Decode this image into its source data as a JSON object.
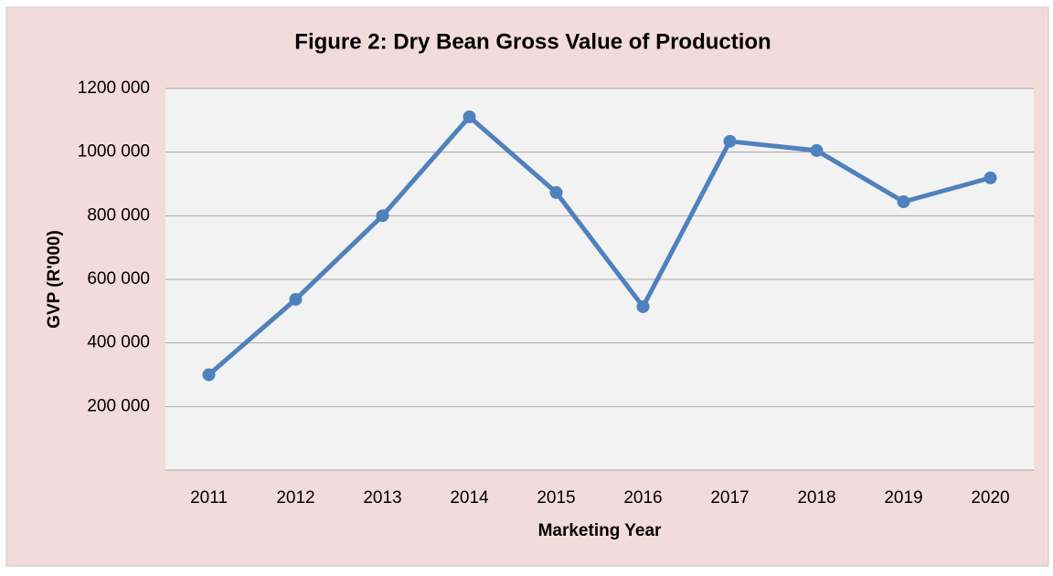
{
  "chart_data": {
    "type": "line",
    "title": "Figure 2: Dry Bean Gross Value of Production",
    "x_label": "Marketing Year",
    "y_label": "GVP (R'000)",
    "categories": [
      "2011",
      "2012",
      "2013",
      "2014",
      "2015",
      "2016",
      "2017",
      "2018",
      "2019",
      "2020"
    ],
    "series": [
      {
        "name": "GVP",
        "color": "#4f81bd",
        "values": [
          300000,
          537000,
          800000,
          1111000,
          873000,
          514000,
          1034000,
          1005000,
          844000,
          919000
        ]
      }
    ],
    "ylim": [
      0,
      1200000
    ],
    "yticks": [
      {
        "value": 200000,
        "label": "200 000"
      },
      {
        "value": 400000,
        "label": "400 000"
      },
      {
        "value": 600000,
        "label": "600 000"
      },
      {
        "value": 800000,
        "label": "800 000"
      },
      {
        "value": 1000000,
        "label": "1000 000"
      },
      {
        "value": 1200000,
        "label": "1200 000"
      }
    ],
    "grid": true
  }
}
